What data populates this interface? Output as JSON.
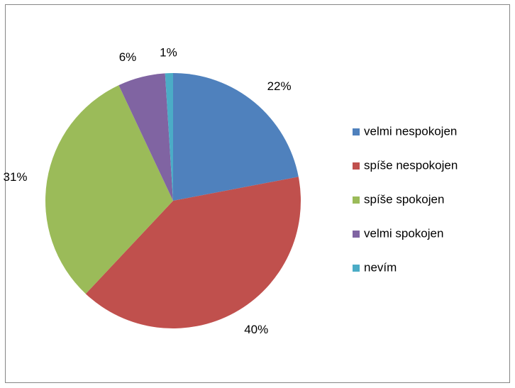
{
  "chart_data": {
    "type": "pie",
    "categories": [
      "velmi nespokojen",
      "spíše nespokojen",
      "spíše spokojen",
      "velmi spokojen",
      "nevím"
    ],
    "values": [
      22,
      40,
      31,
      6,
      1
    ],
    "value_labels": [
      "22%",
      "40%",
      "31%",
      "6%",
      "1%"
    ],
    "colors": [
      "#4f81bd",
      "#c0504d",
      "#9bbb59",
      "#8064a2",
      "#4bacc6"
    ],
    "legend": "right"
  }
}
